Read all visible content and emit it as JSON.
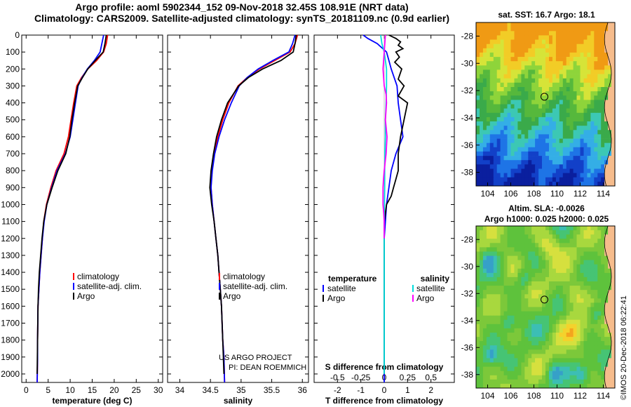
{
  "header": {
    "line1": "Argo profile: aoml 5902344_152 09-Nov-2018 32.45S 108.91E (NRT data)",
    "line2": "Climatology: CARS2009. Satellite-adjusted climatology: synTS_20181109.nc (0.9d earlier)"
  },
  "maps": {
    "sst_title": "sat. SST: 16.7 Argo: 18.1",
    "sla_title1": "Altim. SLA: -0.0026",
    "sla_title2": "Argo h1000: 0.025 h2000: 0.025",
    "lat_ticks": [
      -28,
      -30,
      -32,
      -34,
      -36,
      -38
    ],
    "lon_ticks": [
      104,
      106,
      108,
      110,
      112,
      114
    ],
    "argo_position": {
      "lon": 108.91,
      "lat": -32.45
    },
    "colors": {
      "land": "#f6bc8c",
      "marker": "#2a8a2a"
    }
  },
  "credit": "©IMOS 20-Dec-2018 06:22:41",
  "project": {
    "line1": "US ARGO PROJECT",
    "line2": "PI: DEAN ROEMMICH"
  },
  "colors": {
    "climatology": "#ff0000",
    "satellite": "#0000ff",
    "argo": "#000000",
    "sat_salinity": "#00dddd",
    "argo_salinity": "#ff00ff"
  },
  "chart_data": [
    {
      "type": "line",
      "id": "temperature",
      "xlabel": "temperature (deg C)",
      "ylabel": "",
      "xlim": [
        -1,
        31
      ],
      "ylim": [
        2050,
        0
      ],
      "xticks": [
        "0",
        "5",
        "10",
        "15",
        "20",
        "25",
        "30"
      ],
      "yticks": [
        "0",
        "100",
        "200",
        "300",
        "400",
        "500",
        "600",
        "700",
        "800",
        "900",
        "1000",
        "1100",
        "1200",
        "1300",
        "1400",
        "1500",
        "1600",
        "1700",
        "1800",
        "1900",
        "2000"
      ],
      "legend": [
        "climatology",
        "satellite-adj. clim.",
        "Argo"
      ],
      "series": [
        {
          "name": "climatology",
          "color": "#ff0000",
          "x": [
            18.5,
            18.2,
            17.6,
            16.0,
            14.0,
            12.6,
            11.5,
            10.8,
            10.2,
            9.6,
            8.6,
            6.8,
            5.6,
            4.6,
            4.0,
            3.7,
            3.4,
            3.1,
            2.9,
            2.7,
            2.6,
            2.6,
            2.5
          ],
          "depth": [
            0,
            50,
            100,
            150,
            200,
            250,
            300,
            400,
            500,
            600,
            700,
            800,
            900,
            1000,
            1100,
            1200,
            1300,
            1400,
            1500,
            1600,
            1800,
            1900,
            2050
          ]
        },
        {
          "name": "satellite-adj. clim.",
          "color": "#0000ff",
          "x": [
            17.6,
            17.2,
            16.8,
            15.5,
            13.9,
            12.7,
            11.8,
            11.2,
            10.6,
            10.0,
            8.9,
            7.0,
            5.8,
            4.7,
            4.1,
            3.7,
            3.4,
            3.1,
            2.9,
            2.7,
            2.6,
            2.6,
            2.5
          ],
          "depth": [
            0,
            50,
            100,
            150,
            200,
            250,
            300,
            400,
            500,
            600,
            700,
            800,
            900,
            1000,
            1100,
            1200,
            1300,
            1400,
            1500,
            1600,
            1800,
            1900,
            2050
          ]
        },
        {
          "name": "Argo",
          "color": "#000000",
          "x": [
            18.2,
            17.9,
            17.5,
            15.7,
            14.0,
            12.8,
            11.7,
            11.0,
            10.4,
            9.9,
            9.0,
            7.2,
            5.9,
            4.7,
            4.0,
            3.6,
            3.3,
            3.0,
            2.8,
            2.7,
            2.6,
            2.5
          ],
          "depth": [
            0,
            50,
            100,
            150,
            200,
            250,
            300,
            400,
            500,
            600,
            700,
            800,
            900,
            1000,
            1100,
            1200,
            1300,
            1400,
            1500,
            1600,
            1800,
            2000
          ]
        }
      ]
    },
    {
      "type": "line",
      "id": "salinity",
      "xlabel": "salinity",
      "xlim": [
        33.8,
        36.1
      ],
      "ylim": [
        2050,
        0
      ],
      "xticks": [
        "34",
        "34.5",
        "35",
        "35.5",
        "36"
      ],
      "legend": [
        "climatology",
        "satellite-adj. clim.",
        "Argo"
      ],
      "series": [
        {
          "name": "climatology",
          "color": "#ff0000",
          "x": [
            35.92,
            35.88,
            35.8,
            35.55,
            35.3,
            35.1,
            34.95,
            34.8,
            34.7,
            34.62,
            34.56,
            34.52,
            34.51,
            34.53,
            34.56,
            34.59,
            34.62,
            34.64,
            34.66,
            34.68,
            34.7,
            34.72,
            34.73
          ],
          "depth": [
            0,
            50,
            100,
            150,
            200,
            250,
            300,
            400,
            500,
            600,
            700,
            800,
            900,
            1000,
            1100,
            1200,
            1300,
            1400,
            1500,
            1600,
            1800,
            1900,
            2050
          ]
        },
        {
          "name": "satellite-adj. clim.",
          "color": "#0000ff",
          "x": [
            35.88,
            35.84,
            35.78,
            35.52,
            35.28,
            35.1,
            34.97,
            34.84,
            34.73,
            34.64,
            34.57,
            34.53,
            34.51,
            34.53,
            34.56,
            34.59,
            34.62,
            34.64,
            34.66,
            34.68,
            34.7,
            34.72,
            34.73
          ],
          "depth": [
            0,
            50,
            100,
            150,
            200,
            250,
            300,
            400,
            500,
            600,
            700,
            800,
            900,
            1000,
            1100,
            1200,
            1300,
            1400,
            1500,
            1600,
            1800,
            1900,
            2050
          ]
        },
        {
          "name": "Argo",
          "color": "#000000",
          "x": [
            35.9,
            35.88,
            35.85,
            35.65,
            35.35,
            35.12,
            34.96,
            34.78,
            34.68,
            34.6,
            34.55,
            34.51,
            34.49,
            34.52,
            34.56,
            34.59,
            34.62,
            34.64,
            34.66,
            34.68,
            34.7,
            34.72
          ],
          "depth": [
            0,
            50,
            100,
            150,
            200,
            250,
            300,
            400,
            500,
            600,
            700,
            800,
            900,
            1000,
            1100,
            1200,
            1300,
            1400,
            1500,
            1600,
            1800,
            2000
          ]
        }
      ]
    },
    {
      "type": "line",
      "id": "difference",
      "xlabel": "T difference from climatology",
      "xlabel2": "S difference from climatology",
      "xlim": [
        -3,
        3
      ],
      "ylim": [
        2050,
        0
      ],
      "xticks": [
        "-2",
        "-1",
        "0",
        "1",
        "2"
      ],
      "xticks2": [
        "-0.5",
        "-0.25",
        "0",
        "0.25",
        "0.5"
      ],
      "legend_temperature": {
        "heading": "temperature",
        "items": [
          "satellite",
          "Argo"
        ]
      },
      "legend_salinity": {
        "heading": "salinity",
        "items": [
          "satellite",
          "Argo"
        ]
      },
      "series": [
        {
          "name": "T satellite",
          "color": "#0000ff",
          "x": [
            -0.9,
            -0.7,
            -0.3,
            0.1,
            0.2,
            0.3,
            0.55,
            0.6,
            0.7,
            0.8,
            0.5,
            0.3,
            0.2,
            0.1,
            0.05,
            0.0,
            0.0,
            0.0,
            0.0,
            0.0,
            0.0
          ],
          "depth": [
            0,
            20,
            50,
            100,
            150,
            200,
            300,
            400,
            500,
            600,
            700,
            800,
            900,
            1000,
            1100,
            1200,
            1300,
            1500,
            1700,
            1900,
            2050
          ]
        },
        {
          "name": "T Argo",
          "color": "#000000",
          "x": [
            0.2,
            0.5,
            0.7,
            0.6,
            0.8,
            0.5,
            0.65,
            0.45,
            0.75,
            0.6,
            0.85,
            0.6,
            1.0,
            0.85,
            0.7,
            0.6,
            0.6,
            0.5,
            0.4,
            0.3,
            0.1,
            0.0,
            0.0,
            0.0,
            0.0
          ],
          "depth": [
            0,
            20,
            40,
            60,
            80,
            100,
            130,
            160,
            200,
            260,
            300,
            360,
            400,
            500,
            600,
            700,
            800,
            850,
            900,
            950,
            1000,
            1100,
            1300,
            1600,
            2000
          ]
        },
        {
          "name": "S satellite",
          "color": "#00dddd",
          "x": [
            -0.15,
            -0.1,
            0.0,
            0.05,
            0.1,
            0.1,
            0.08,
            0.05,
            0.05,
            0.03,
            0.02,
            0.02,
            0.01,
            0.0,
            0.0,
            0.0,
            0.0,
            0.0
          ],
          "depth": [
            0,
            50,
            100,
            150,
            200,
            300,
            400,
            500,
            600,
            700,
            800,
            900,
            1000,
            1100,
            1300,
            1600,
            1900,
            2000
          ]
        },
        {
          "name": "S Argo",
          "color": "#ff00ff",
          "x": [
            0.05,
            0.0,
            -0.05,
            0.0,
            0.08,
            0.1,
            0.05,
            0.12,
            0.08,
            0.0,
            -0.03,
            -0.05,
            -0.05,
            -0.05,
            -0.02,
            0.0,
            0.0
          ],
          "depth": [
            0,
            100,
            200,
            300,
            350,
            400,
            500,
            600,
            700,
            800,
            850,
            900,
            950,
            1000,
            1050,
            1100,
            1200
          ]
        }
      ]
    }
  ]
}
